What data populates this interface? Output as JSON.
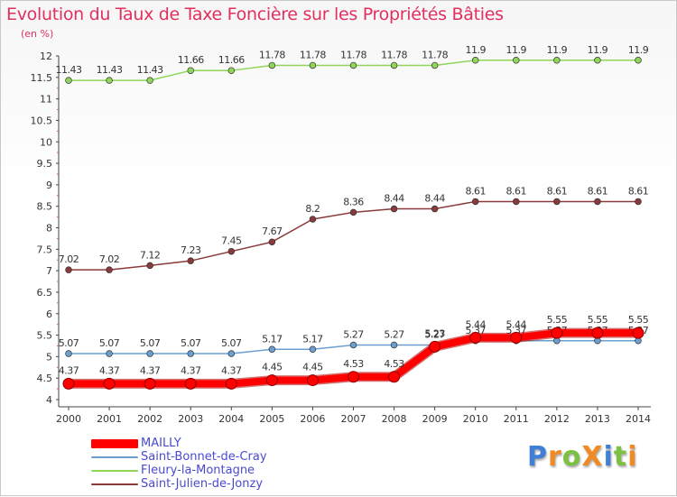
{
  "chart_data": {
    "type": "line",
    "title": "Evolution du Taux de Taxe Foncière sur les Propriétés Bâties",
    "ylabel": "(en %)",
    "xlabel": "",
    "x": [
      2000,
      2001,
      2002,
      2003,
      2004,
      2005,
      2006,
      2007,
      2008,
      2009,
      2010,
      2011,
      2012,
      2013,
      2014
    ],
    "ylim": [
      4,
      12
    ],
    "yticks": [
      4,
      4.5,
      5,
      5.5,
      6,
      6.5,
      7,
      7.5,
      8,
      8.5,
      9,
      9.5,
      10,
      10.5,
      11,
      11.5,
      12
    ],
    "ytick_labels": [
      "4",
      "4.5",
      "5",
      "5.5",
      "6",
      "6.5",
      "7",
      "7.5",
      "8",
      "8.5",
      "9",
      "9.5",
      "10",
      "10.5",
      "11",
      "11.5",
      "12"
    ],
    "grid": false,
    "legend_position": "bottom-left",
    "series": [
      {
        "name": "MAILLY",
        "color": "#ff0000",
        "emphasis": "thick",
        "values": [
          4.37,
          4.37,
          4.37,
          4.37,
          4.37,
          4.45,
          4.45,
          4.53,
          4.53,
          5.23,
          5.44,
          5.44,
          5.55,
          5.55,
          5.55
        ],
        "labels": [
          "4.37",
          "4.37",
          "4.37",
          "4.37",
          "4.37",
          "4.45",
          "4.45",
          "4.53",
          "4.53",
          "5.23",
          "5.44",
          "5.44",
          "5.55",
          "5.55",
          "5.55"
        ]
      },
      {
        "name": "Saint-Bonnet-de-Cray",
        "color": "#6a9fd0",
        "emphasis": "normal",
        "values": [
          5.07,
          5.07,
          5.07,
          5.07,
          5.07,
          5.17,
          5.17,
          5.27,
          5.27,
          5.27,
          5.37,
          5.37,
          5.37,
          5.37,
          5.37
        ],
        "labels": [
          "5.07",
          "5.07",
          "5.07",
          "5.07",
          "5.07",
          "5.17",
          "5.17",
          "5.27",
          "5.27",
          "5.27",
          "5.37",
          "5.37",
          "5.37",
          "5.37",
          "5.37"
        ]
      },
      {
        "name": "Fleury-la-Montagne",
        "color": "#8fd65a",
        "emphasis": "normal",
        "values": [
          11.43,
          11.43,
          11.43,
          11.66,
          11.66,
          11.78,
          11.78,
          11.78,
          11.78,
          11.78,
          11.9,
          11.9,
          11.9,
          11.9,
          11.9
        ],
        "labels": [
          "11.43",
          "11.43",
          "11.43",
          "11.66",
          "11.66",
          "11.78",
          "11.78",
          "11.78",
          "11.78",
          "11.78",
          "11.9",
          "11.9",
          "11.9",
          "11.9",
          "11.9"
        ]
      },
      {
        "name": "Saint-Julien-de-Jonzy",
        "color": "#8a3a3a",
        "emphasis": "normal",
        "values": [
          7.02,
          7.02,
          7.12,
          7.23,
          7.45,
          7.67,
          8.2,
          8.36,
          8.44,
          8.44,
          8.61,
          8.61,
          8.61,
          8.61,
          8.61
        ],
        "labels": [
          "7.02",
          "7.02",
          "7.12",
          "7.23",
          "7.45",
          "7.67",
          "8.2",
          "8.36",
          "8.44",
          "8.44",
          "8.61",
          "8.61",
          "8.61",
          "8.61",
          "8.61"
        ]
      }
    ]
  },
  "brand": {
    "name": "ProXiti",
    "letters": [
      "P",
      "r",
      "o",
      "X",
      "i",
      "t",
      "i"
    ],
    "letter_colors": [
      "#3f7fd6",
      "#f08a24",
      "#7cc142",
      "#f08a24",
      "#3f7fd6",
      "#7cc142",
      "#f08a24"
    ]
  }
}
